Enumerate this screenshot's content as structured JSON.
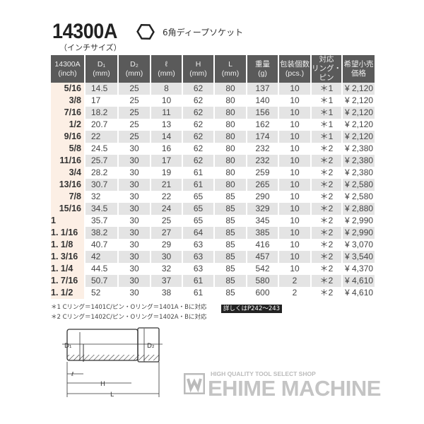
{
  "header": {
    "title": "14300A",
    "subtitle": "（インチサイズ）",
    "shape_icon": "hexagon-icon",
    "description": "6角ディープソケット"
  },
  "table": {
    "columns": [
      [
        "14300A",
        "(inch)"
      ],
      [
        "D₁",
        "(mm)"
      ],
      [
        "D₂",
        "(mm)"
      ],
      [
        "ℓ",
        "(mm)"
      ],
      [
        "H",
        "(mm)"
      ],
      [
        "L",
        "(mm)"
      ],
      [
        "重量",
        "(g)"
      ],
      [
        "包装個数",
        "(pcs.)"
      ],
      [
        "対応",
        "リング・ピン"
      ],
      [
        "希望小売",
        "価格"
      ]
    ],
    "rows": [
      [
        "5/16",
        "14.5",
        "25",
        "8",
        "62",
        "80",
        "137",
        "10",
        "＊1",
        "¥ 2,120"
      ],
      [
        "3/8",
        "17",
        "25",
        "10",
        "62",
        "80",
        "140",
        "10",
        "＊1",
        "¥ 2,120"
      ],
      [
        "7/16",
        "18.2",
        "25",
        "11",
        "62",
        "80",
        "156",
        "10",
        "＊1",
        "¥ 2,120"
      ],
      [
        "1/2",
        "20.7",
        "25",
        "13",
        "62",
        "80",
        "162",
        "10",
        "＊1",
        "¥ 2,120"
      ],
      [
        "9/16",
        "22",
        "25",
        "14",
        "62",
        "80",
        "174",
        "10",
        "＊1",
        "¥ 2,120"
      ],
      [
        "5/8",
        "24.5",
        "30",
        "16",
        "62",
        "80",
        "232",
        "10",
        "＊2",
        "¥ 2,380"
      ],
      [
        "11/16",
        "25.7",
        "30",
        "17",
        "62",
        "80",
        "232",
        "10",
        "＊2",
        "¥ 2,380"
      ],
      [
        "3/4",
        "28.2",
        "30",
        "19",
        "61",
        "80",
        "259",
        "10",
        "＊2",
        "¥ 2,380"
      ],
      [
        "13/16",
        "30.7",
        "30",
        "21",
        "61",
        "80",
        "265",
        "10",
        "＊2",
        "¥ 2,580"
      ],
      [
        "7/8",
        "32",
        "30",
        "22",
        "65",
        "85",
        "290",
        "10",
        "＊2",
        "¥ 2,580"
      ],
      [
        "15/16",
        "34.5",
        "30",
        "24",
        "65",
        "85",
        "329",
        "10",
        "＊2",
        "¥ 2,880"
      ],
      [
        "1",
        "35.7",
        "30",
        "25",
        "65",
        "85",
        "345",
        "10",
        "＊2",
        "¥ 2,990"
      ],
      [
        "1. 1/16",
        "38.2",
        "30",
        "27",
        "64",
        "85",
        "385",
        "10",
        "＊2",
        "¥ 2,990"
      ],
      [
        "1. 1/8",
        "40.7",
        "30",
        "29",
        "63",
        "85",
        "416",
        "10",
        "＊2",
        "¥ 3,070"
      ],
      [
        "1. 3/16",
        "42",
        "30",
        "30",
        "63",
        "85",
        "457",
        "10",
        "＊2",
        "¥ 3,540"
      ],
      [
        "1. 1/4",
        "44.5",
        "30",
        "32",
        "63",
        "85",
        "542",
        "10",
        "＊2",
        "¥ 4,370"
      ],
      [
        "1. 7/16",
        "50.7",
        "30",
        "37",
        "61",
        "85",
        "580",
        "2",
        "＊2",
        "¥ 4,610"
      ],
      [
        "1. 1/2",
        "52",
        "30",
        "38",
        "61",
        "85",
        "600",
        "2",
        "＊2",
        "¥ 4,610"
      ]
    ]
  },
  "notes": [
    "＊1 Cリング＝1401C/ピン・Oリング＝1401A・Bに対応",
    "＊2 Cリング＝1402C/ピン・Oリング＝1402A・Bに対応"
  ],
  "reference": "詳しくはP242～243",
  "diagram": {
    "labels": {
      "d1": "D₁",
      "d2": "D₂",
      "l_small": "ℓ",
      "h": "H",
      "l": "L"
    }
  },
  "logo": {
    "tagline": "HIGH QUALITY TOOL SELECT SHOP",
    "name": "EHIME MACHINE"
  }
}
